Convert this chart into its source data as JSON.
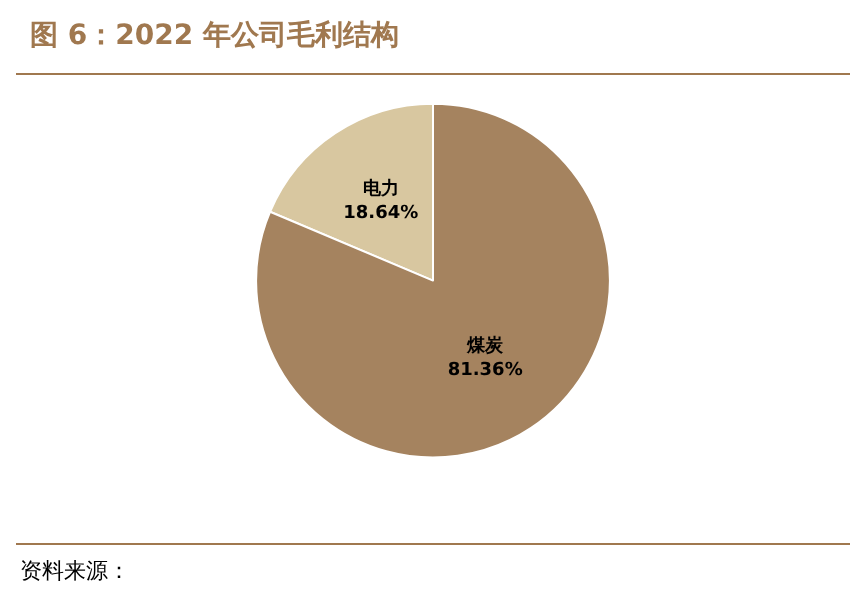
{
  "chart_data": {
    "type": "pie",
    "title": "图 6：2022 年公司毛利结构",
    "categories": [
      "电力",
      "煤炭"
    ],
    "values": [
      18.64,
      81.36
    ],
    "colors": [
      "#d8c7a0",
      "#a5835f"
    ],
    "value_labels": [
      "18.64%",
      "81.36%"
    ],
    "annotations": [
      "资料来源："
    ],
    "legend": false
  }
}
